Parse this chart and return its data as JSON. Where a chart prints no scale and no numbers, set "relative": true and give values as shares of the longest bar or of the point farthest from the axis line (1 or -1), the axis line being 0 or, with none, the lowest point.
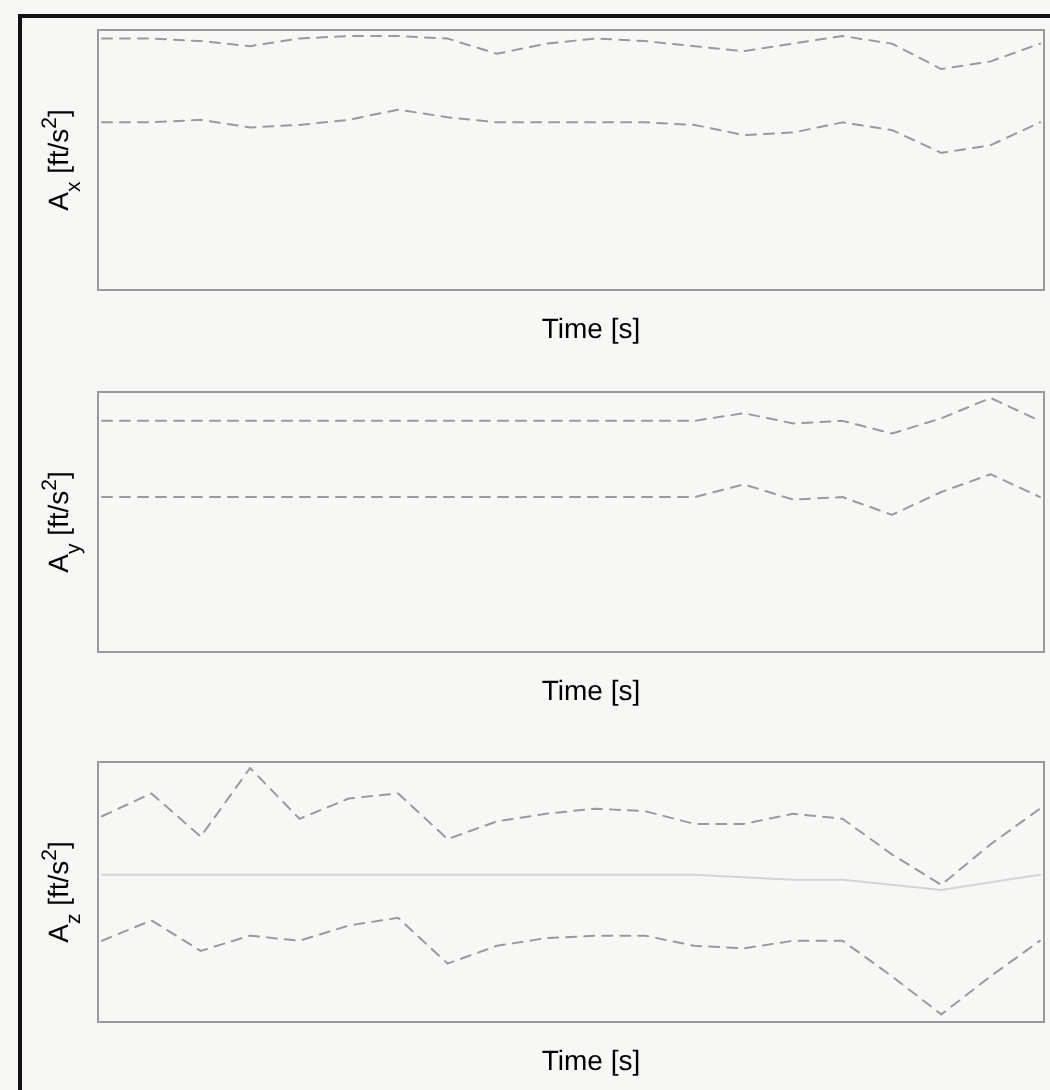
{
  "chart_data": [
    {
      "type": "line",
      "relative": true,
      "xlabel": "Time [s]",
      "ylabel": "A$_{x}$ [ft/s$^{2}$]",
      "categories": [
        null,
        null,
        null,
        null,
        null,
        null,
        null,
        null,
        null,
        null,
        null,
        null,
        null,
        null,
        null,
        null,
        null,
        null,
        null,
        null
      ],
      "series": [
        {
          "color": "#9a9a9a",
          "line_style": "dashed",
          "values": [
            0.99,
            0.99,
            0.98,
            0.96,
            0.99,
            1,
            1,
            0.99,
            0.93,
            0.97,
            0.99,
            0.98,
            0.96,
            0.94,
            0.97,
            1,
            0.97,
            0.87,
            0.9,
            0.97
          ]
        },
        {
          "color": "#9a9a9a",
          "line_style": "dashed",
          "values": [
            0.66,
            0.66,
            0.67,
            0.64,
            0.65,
            0.67,
            0.71,
            0.68,
            0.66,
            0.66,
            0.66,
            0.66,
            0.65,
            0.61,
            0.62,
            0.66,
            0.63,
            0.54,
            0.57,
            0.66
          ]
        }
      ]
    },
    {
      "type": "line",
      "relative": true,
      "xlabel": "Time [s]",
      "ylabel": "A$_{y}$ [ft/s$^{2}$]",
      "categories": [
        null,
        null,
        null,
        null,
        null,
        null,
        null,
        null,
        null,
        null,
        null,
        null,
        null,
        null,
        null,
        null,
        null,
        null,
        null,
        null
      ],
      "series": [
        {
          "color": "#9a9a9a",
          "line_style": "dashed",
          "values": [
            0.91,
            0.91,
            0.91,
            0.91,
            0.91,
            0.91,
            0.91,
            0.91,
            0.91,
            0.91,
            0.91,
            0.91,
            0.91,
            0.94,
            0.9,
            0.91,
            0.86,
            0.92,
            1,
            0.91
          ]
        },
        {
          "color": "#9a9a9a",
          "line_style": "dashed",
          "values": [
            0.61,
            0.61,
            0.61,
            0.61,
            0.61,
            0.61,
            0.61,
            0.61,
            0.61,
            0.61,
            0.61,
            0.61,
            0.61,
            0.66,
            0.6,
            0.61,
            0.54,
            0.63,
            0.7,
            0.61
          ]
        }
      ]
    },
    {
      "type": "line",
      "relative": true,
      "xlabel": "Time [s]",
      "ylabel": "A$_{z}$ [ft/s$^{2}$]",
      "categories": [
        null,
        null,
        null,
        null,
        null,
        null,
        null,
        null,
        null,
        null,
        null,
        null,
        null,
        null,
        null,
        null,
        null,
        null,
        null,
        null
      ],
      "series": [
        {
          "color": "#9a9a9a",
          "line_style": "dashed",
          "values": [
            0.81,
            0.9,
            0.73,
            1,
            0.8,
            0.88,
            0.9,
            0.72,
            0.79,
            0.82,
            0.84,
            0.83,
            0.78,
            0.78,
            0.82,
            0.8,
            0.66,
            0.54,
            0.7,
            0.84
          ]
        },
        {
          "color": "#d4d4d4",
          "line_style": "solid",
          "values": [
            0.58,
            0.58,
            0.58,
            0.58,
            0.58,
            0.58,
            0.58,
            0.58,
            0.58,
            0.58,
            0.58,
            0.58,
            0.58,
            0.57,
            0.56,
            0.56,
            0.54,
            0.52,
            0.55,
            0.58
          ]
        },
        {
          "color": "#9a9a9a",
          "line_style": "dashed",
          "values": [
            0.32,
            0.4,
            0.28,
            0.34,
            0.32,
            0.38,
            0.41,
            0.23,
            0.3,
            0.33,
            0.34,
            0.34,
            0.3,
            0.29,
            0.32,
            0.32,
            0.18,
            0.03,
            0.18,
            0.32
          ]
        }
      ]
    }
  ]
}
